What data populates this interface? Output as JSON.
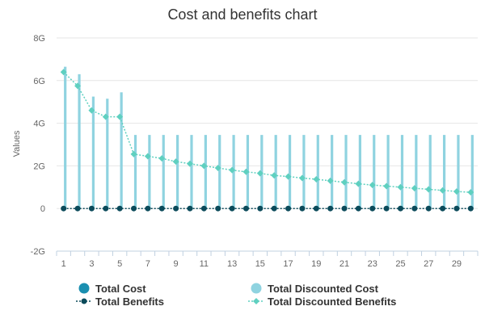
{
  "chart_data": {
    "type": "bar",
    "title": "Cost and benefits chart",
    "ylabel": "Values",
    "xlabel": "",
    "x": [
      1,
      2,
      3,
      4,
      5,
      6,
      7,
      8,
      9,
      10,
      11,
      12,
      13,
      14,
      15,
      16,
      17,
      18,
      19,
      20,
      21,
      22,
      23,
      24,
      25,
      26,
      27,
      28,
      29,
      30
    ],
    "x_tick_labels": [
      "1",
      "3",
      "5",
      "7",
      "9",
      "11",
      "13",
      "15",
      "17",
      "19",
      "21",
      "23",
      "25",
      "27",
      "29"
    ],
    "y_tick_labels": [
      "-2G",
      "0",
      "2G",
      "4G",
      "6G",
      "8G"
    ],
    "y_ticks": [
      -2,
      0,
      2,
      4,
      6,
      8
    ],
    "ylim": [
      -2,
      8
    ],
    "grid": true,
    "legend_position": "bottom",
    "series": [
      {
        "name": "Total Cost",
        "kind": "bar",
        "color": "#1a8fb0",
        "values": [
          0,
          0,
          0,
          0,
          0,
          0,
          0,
          0,
          0,
          0,
          0,
          0,
          0,
          0,
          0,
          0,
          0,
          0,
          0,
          0,
          0,
          0,
          0,
          0,
          0,
          0,
          0,
          0,
          0,
          0
        ]
      },
      {
        "name": "Total Discounted Cost",
        "kind": "bar",
        "color": "#8fd3e0",
        "values": [
          6.65,
          6.3,
          5.25,
          5.15,
          5.45,
          3.45,
          3.45,
          3.45,
          3.45,
          3.45,
          3.45,
          3.45,
          3.45,
          3.45,
          3.45,
          3.45,
          3.45,
          3.45,
          3.45,
          3.45,
          3.45,
          3.45,
          3.45,
          3.45,
          3.45,
          3.45,
          3.45,
          3.45,
          3.45,
          3.45
        ]
      },
      {
        "name": "Total Benefits",
        "kind": "line",
        "color": "#0b4a5a",
        "values": [
          0,
          0,
          0,
          0,
          0,
          0,
          0,
          0,
          0,
          0,
          0,
          0,
          0,
          0,
          0,
          0,
          0,
          0,
          0,
          0,
          0,
          0,
          0,
          0,
          0,
          0,
          0,
          0,
          0,
          0
        ]
      },
      {
        "name": "Total Discounted Benefits",
        "kind": "line",
        "color": "#5fd0c0",
        "values": [
          6.4,
          5.75,
          4.6,
          4.3,
          4.3,
          2.55,
          2.45,
          2.35,
          2.2,
          2.1,
          2.0,
          1.9,
          1.8,
          1.72,
          1.65,
          1.55,
          1.5,
          1.43,
          1.37,
          1.3,
          1.23,
          1.16,
          1.1,
          1.05,
          1.0,
          0.95,
          0.9,
          0.85,
          0.8,
          0.76
        ]
      }
    ]
  }
}
